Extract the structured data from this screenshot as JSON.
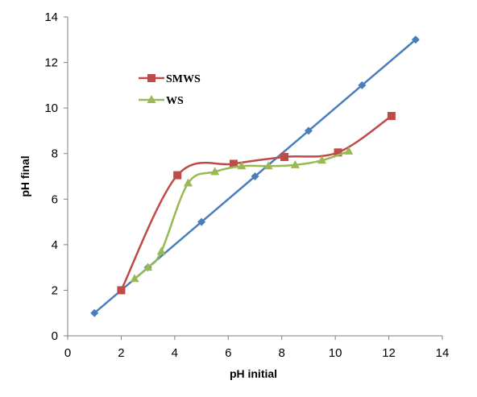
{
  "chart_data": {
    "type": "line",
    "xlabel": "pH initial",
    "ylabel": "pH final",
    "xlim": [
      0,
      14
    ],
    "ylim": [
      0,
      14
    ],
    "x_ticks": [
      0,
      2,
      4,
      6,
      8,
      10,
      12,
      14
    ],
    "y_ticks": [
      0,
      2,
      4,
      6,
      8,
      10,
      12,
      14
    ],
    "grid": false,
    "legend": "upper-left",
    "series": [
      {
        "name": "",
        "color": "#4a7ebb",
        "marker": "diamond",
        "smooth": false,
        "in_legend": false,
        "x": [
          1,
          2,
          3,
          5,
          7,
          9,
          11,
          13
        ],
        "y": [
          1,
          2,
          3,
          5,
          7,
          9,
          11,
          13
        ]
      },
      {
        "name": "SMWS",
        "color": "#be4b48",
        "marker": "square",
        "smooth": true,
        "in_legend": true,
        "x": [
          2,
          4.1,
          6.2,
          8.1,
          10.1,
          12.1
        ],
        "y": [
          2.0,
          7.05,
          7.55,
          7.85,
          8.05,
          9.65
        ]
      },
      {
        "name": "WS",
        "color": "#98b954",
        "marker": "triangle",
        "smooth": true,
        "in_legend": true,
        "x": [
          2.5,
          3.0,
          3.5,
          4.5,
          5.5,
          6.5,
          7.5,
          8.5,
          9.5,
          10.5
        ],
        "y": [
          2.5,
          3.0,
          3.7,
          6.7,
          7.2,
          7.45,
          7.45,
          7.5,
          7.7,
          8.1
        ]
      }
    ]
  }
}
